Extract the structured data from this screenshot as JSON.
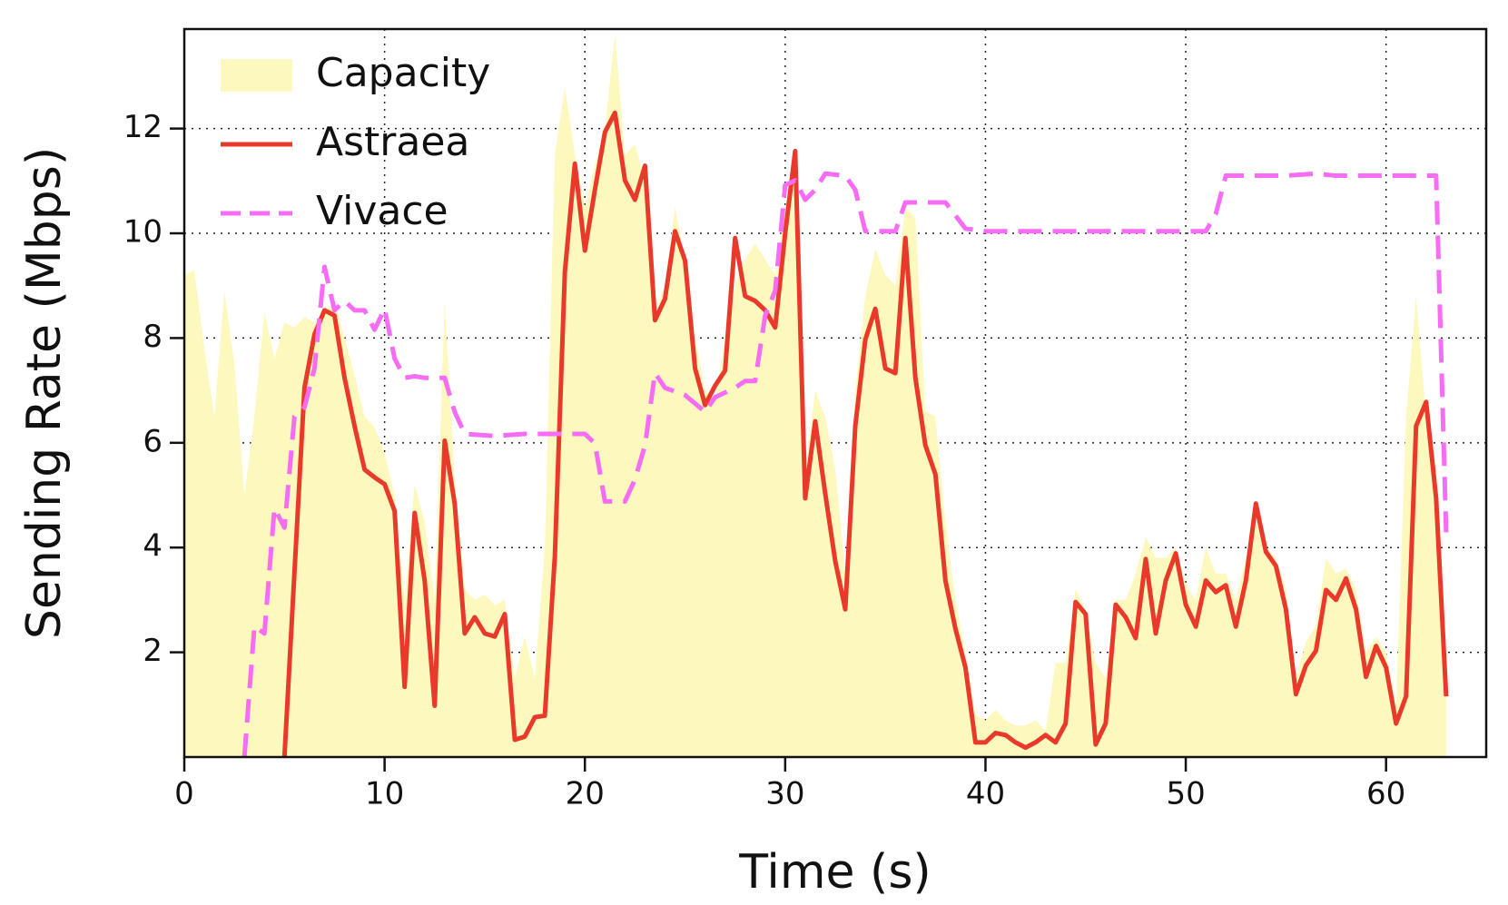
{
  "chart_data": {
    "type": "line",
    "x_label": "Time (s)",
    "y_label": "Sending Rate (Mbps)",
    "xlim": [
      0,
      65
    ],
    "ylim": [
      0,
      13.9
    ],
    "xticks": [
      0,
      10,
      20,
      30,
      40,
      50,
      60
    ],
    "yticks": [
      2,
      4,
      6,
      8,
      10,
      12
    ],
    "grid": true,
    "legend": "upper-left",
    "series": [
      {
        "name": "Capacity",
        "color": "#fdf8bd",
        "kind": "area",
        "x": [
          0,
          0.5,
          1,
          1.5,
          2,
          2.5,
          3,
          3.5,
          4,
          4.5,
          5,
          5.5,
          6,
          6.5,
          7,
          7.5,
          8,
          8.5,
          9,
          9.5,
          10,
          10.5,
          11,
          11.5,
          12,
          12.5,
          13,
          13.5,
          14,
          14.5,
          15,
          15.5,
          16,
          16.5,
          17,
          17.5,
          18,
          18.5,
          19,
          19.5,
          20,
          20.5,
          21,
          21.5,
          22,
          22.5,
          23,
          23.5,
          24,
          24.5,
          25,
          25.5,
          26,
          26.5,
          27,
          27.5,
          28,
          28.5,
          29,
          29.5,
          30,
          30.5,
          31,
          31.5,
          32,
          32.5,
          33,
          33.5,
          34,
          34.5,
          35,
          35.5,
          36,
          36.5,
          37,
          37.5,
          38,
          38.5,
          39,
          39.5,
          40,
          40.5,
          41,
          41.5,
          42,
          42.5,
          43,
          43.5,
          44,
          44.5,
          45,
          45.5,
          46,
          46.5,
          47,
          47.5,
          48,
          48.5,
          49,
          49.5,
          50,
          50.5,
          51,
          51.5,
          52,
          52.5,
          53,
          53.5,
          54,
          54.5,
          55,
          55.5,
          56,
          56.5,
          57,
          57.5,
          58,
          58.5,
          59,
          59.5,
          60,
          60.5,
          61,
          61.5,
          62,
          62.5,
          63
        ],
        "values": [
          9.2,
          9.3,
          7.8,
          6.5,
          8.9,
          7.5,
          5.0,
          6.5,
          8.5,
          7.6,
          8.3,
          8.2,
          8.4,
          8.3,
          8.5,
          8.7,
          8.0,
          7.3,
          6.5,
          6.3,
          5.8,
          5.0,
          3.0,
          5.2,
          4.5,
          3.0,
          8.7,
          5.3,
          3.2,
          3.0,
          3.1,
          2.9,
          3.0,
          1.5,
          2.3,
          1.5,
          4.0,
          11.5,
          12.8,
          11.5,
          10.5,
          11.3,
          12.0,
          13.8,
          11.5,
          11.7,
          11.0,
          8.5,
          9.0,
          10.5,
          9.5,
          8.0,
          7.0,
          6.8,
          8.0,
          9.0,
          9.5,
          9.8,
          9.5,
          9.2,
          10.5,
          11.5,
          5.5,
          7.0,
          6.5,
          5.5,
          3.5,
          7.0,
          8.8,
          9.7,
          9.2,
          9.0,
          10.5,
          10.3,
          6.6,
          6.5,
          4.5,
          3.0,
          2.0,
          0.8,
          0.7,
          0.9,
          0.7,
          0.6,
          0.6,
          0.7,
          0.5,
          1.8,
          1.8,
          3.2,
          2.8,
          1.8,
          1.5,
          3.0,
          3.0,
          3.5,
          4.2,
          3.8,
          3.8,
          4.0,
          3.3,
          3.0,
          4.0,
          3.5,
          3.5,
          3.0,
          3.8,
          4.5,
          4.0,
          3.8,
          3.2,
          1.5,
          2.2,
          2.5,
          3.8,
          3.5,
          3.6,
          3.2,
          2.0,
          2.3,
          2.0,
          1.0,
          6.5,
          8.8,
          6.5,
          5.5,
          1.2
        ]
      },
      {
        "name": "Astraea",
        "color": "#e8392b",
        "kind": "line",
        "x": [
          5,
          6,
          6.5,
          7,
          7.5,
          8,
          8.5,
          9,
          9.5,
          10,
          10.5,
          11,
          11.5,
          12,
          12.5,
          13,
          13.5,
          14,
          14.5,
          15,
          15.5,
          16,
          16.5,
          17,
          17.5,
          18,
          18.5,
          19,
          19.5,
          20,
          20.5,
          21,
          21.5,
          22,
          22.5,
          23,
          23.5,
          24,
          24.5,
          25,
          25.5,
          26,
          26.5,
          27,
          27.5,
          28,
          28.5,
          29,
          29.5,
          30,
          30.5,
          31,
          31.5,
          32,
          32.5,
          33,
          33.5,
          34,
          34.5,
          35,
          35.5,
          36,
          36.5,
          37,
          37.5,
          38,
          38.5,
          39,
          39.5,
          40,
          40.5,
          41,
          41.5,
          42,
          42.5,
          43,
          43.5,
          44,
          44.5,
          45,
          45.5,
          46,
          46.5,
          47,
          47.5,
          48,
          48.5,
          49,
          49.5,
          50,
          50.5,
          51,
          51.5,
          52,
          52.5,
          53,
          53.5,
          54,
          54.5,
          55,
          55.5,
          56,
          56.5,
          57,
          57.5,
          58,
          58.5,
          59,
          59.5,
          60,
          60.5,
          61,
          61.5,
          62,
          62.5,
          63
        ],
        "values": [
          0,
          7.05,
          8.07,
          8.53,
          8.43,
          7.24,
          6.32,
          5.49,
          5.34,
          5.21,
          4.7,
          1.34,
          4.66,
          3.37,
          0.98,
          6.04,
          4.84,
          2.36,
          2.67,
          2.36,
          2.3,
          2.73,
          0.33,
          0.39,
          0.76,
          0.79,
          3.83,
          9.26,
          11.33,
          9.67,
          10.83,
          11.93,
          12.3,
          11.01,
          10.64,
          11.29,
          8.34,
          8.75,
          10.04,
          9.48,
          7.42,
          6.72,
          7.09,
          7.38,
          9.91,
          8.8,
          8.71,
          8.53,
          8.2,
          10,
          11.57,
          4.94,
          6.41,
          5.03,
          3.74,
          2.82,
          6.32,
          7.97,
          8.56,
          7.42,
          7.33,
          9.91,
          7.24,
          5.95,
          5.4,
          3.37,
          2.45,
          1.71,
          0.28,
          0.28,
          0.46,
          0.42,
          0.28,
          0.18,
          0.28,
          0.42,
          0.28,
          0.64,
          2.96,
          2.73,
          0.24,
          0.64,
          2.91,
          2.67,
          2.27,
          3.78,
          2.36,
          3.37,
          3.89,
          2.91,
          2.49,
          3.37,
          3.15,
          3.28,
          2.49,
          3.37,
          4.84,
          3.92,
          3.65,
          2.82,
          1.2,
          1.75,
          2.03,
          3.19,
          3.0,
          3.41,
          2.82,
          1.53,
          2.12,
          1.71,
          0.64,
          1.16,
          6.32,
          6.78,
          4.94,
          1.16
        ]
      },
      {
        "name": "Vivace",
        "color": "#f66cf4",
        "kind": "line",
        "dashed": true,
        "x": [
          3,
          3.5,
          4,
          4.5,
          5,
          5.5,
          6,
          6.5,
          7,
          7.5,
          8,
          8.5,
          9,
          9.5,
          10,
          10.5,
          11,
          11.5,
          12,
          13,
          13.5,
          14,
          15.5,
          17,
          18.5,
          20,
          20.5,
          21,
          22,
          22.5,
          23,
          23.5,
          24,
          25,
          26,
          26.5,
          27.5,
          28,
          28.5,
          29,
          29.5,
          30,
          30.5,
          31,
          31.5,
          32,
          33,
          33.5,
          34,
          35.5,
          36,
          38,
          39,
          40,
          51,
          51.5,
          52,
          55,
          56.5,
          57.5,
          59.5,
          62.5,
          63
        ],
        "values": [
          0,
          2.5,
          2.36,
          4.75,
          4.38,
          6.5,
          6.68,
          7.42,
          9.36,
          8.53,
          8.71,
          8.53,
          8.53,
          8.16,
          8.56,
          7.61,
          7.24,
          7.27,
          7.24,
          7.24,
          6.59,
          6.17,
          6.13,
          6.17,
          6.17,
          6.17,
          5.99,
          4.88,
          4.88,
          5.3,
          5.95,
          7.33,
          7.05,
          6.91,
          6.59,
          6.87,
          7.05,
          7.18,
          7.18,
          8.43,
          8.9,
          10.92,
          11.01,
          10.64,
          10.83,
          11.14,
          11.1,
          10.83,
          10.04,
          10.04,
          10.59,
          10.59,
          10.09,
          10.04,
          10.04,
          10.37,
          11.1,
          11.1,
          11.14,
          11.1,
          11.1,
          11.1,
          4.29
        ]
      }
    ]
  }
}
